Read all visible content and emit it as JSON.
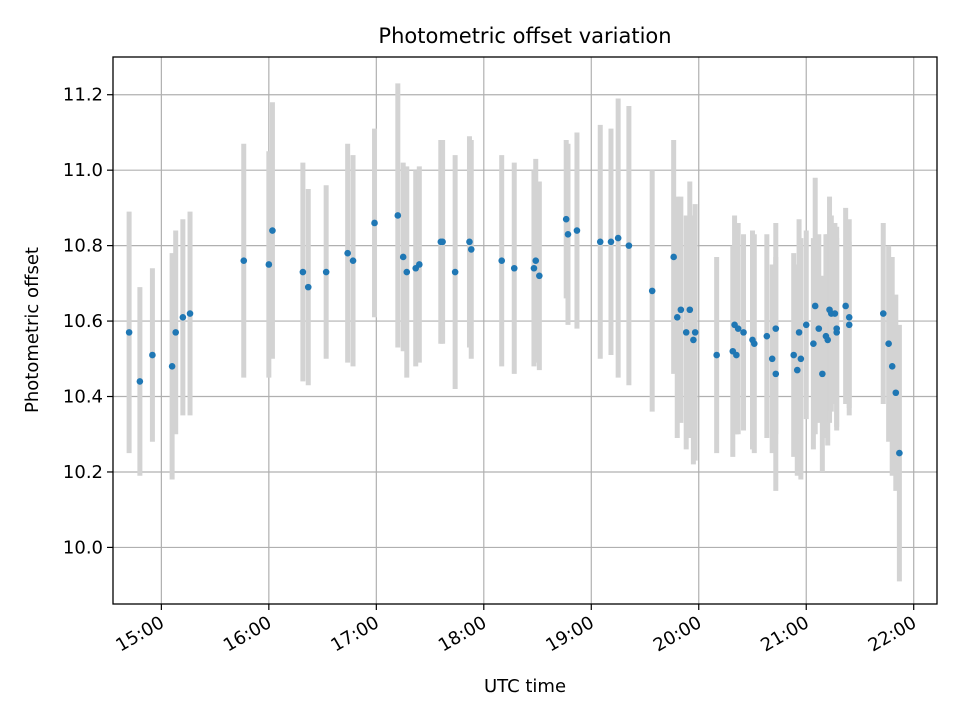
{
  "chart_data": {
    "type": "scatter",
    "title": "Photometric offset variation",
    "xlabel": "UTC time",
    "ylabel": "Photometric offset",
    "x_tick_labels": [
      "15:00",
      "16:00",
      "17:00",
      "18:00",
      "19:00",
      "20:00",
      "21:00",
      "22:00"
    ],
    "y_tick_labels": [
      "10.0",
      "10.2",
      "10.4",
      "10.6",
      "10.8",
      "11.0",
      "11.2"
    ],
    "xlim": [
      "14:33",
      "22:13"
    ],
    "ylim": [
      9.85,
      11.3
    ],
    "grid": true,
    "legend": null,
    "colors": {
      "points": "#1f77b4",
      "errorbars": "#d3d3d3",
      "grid": "#b0b0b0"
    },
    "series": [
      {
        "x": [
          "14:42",
          "14:48",
          "14:55",
          "15:06",
          "15:08",
          "15:12",
          "15:16",
          "15:46",
          "16:00",
          "16:02",
          "16:19",
          "16:22",
          "16:32",
          "16:44",
          "16:47",
          "16:59",
          "17:12",
          "17:15",
          "17:17",
          "17:22",
          "17:24",
          "17:36",
          "17:37",
          "17:44",
          "17:52",
          "17:53",
          "18:10",
          "18:17",
          "18:28",
          "18:29",
          "18:31",
          "18:46",
          "18:47",
          "18:52",
          "19:05",
          "19:11",
          "19:15",
          "19:21",
          "19:34",
          "19:46",
          "19:48",
          "19:50",
          "19:53",
          "19:55",
          "19:57",
          "19:58",
          "20:10",
          "20:19",
          "20:20",
          "20:21",
          "20:22",
          "20:25",
          "20:30",
          "20:31",
          "20:38",
          "20:41",
          "20:43",
          "20:43",
          "20:53",
          "20:55",
          "20:56",
          "20:57",
          "21:00",
          "21:04",
          "21:05",
          "21:07",
          "21:09",
          "21:11",
          "21:12",
          "21:13",
          "21:14",
          "21:16",
          "21:17",
          "21:17",
          "21:22",
          "21:24",
          "21:24",
          "21:43",
          "21:46",
          "21:48",
          "21:50",
          "21:52"
        ],
        "y": [
          10.57,
          10.44,
          10.51,
          10.48,
          10.57,
          10.61,
          10.62,
          10.76,
          10.75,
          10.84,
          10.73,
          10.69,
          10.73,
          10.78,
          10.76,
          10.86,
          10.88,
          10.77,
          10.73,
          10.74,
          10.75,
          10.81,
          10.81,
          10.73,
          10.81,
          10.79,
          10.76,
          10.74,
          10.74,
          10.76,
          10.72,
          10.87,
          10.83,
          10.84,
          10.81,
          10.81,
          10.82,
          10.8,
          10.68,
          10.77,
          10.61,
          10.63,
          10.57,
          10.63,
          10.55,
          10.57,
          10.51,
          10.52,
          10.59,
          10.51,
          10.58,
          10.57,
          10.55,
          10.54,
          10.56,
          10.5,
          10.58,
          10.46,
          10.51,
          10.47,
          10.57,
          10.5,
          10.59,
          10.54,
          10.64,
          10.58,
          10.46,
          10.56,
          10.55,
          10.63,
          10.62,
          10.62,
          10.57,
          10.58,
          10.64,
          10.61,
          10.59,
          10.62,
          10.54,
          10.48,
          10.41,
          10.25
        ],
        "yerr": [
          0.32,
          0.25,
          0.23,
          0.3,
          0.27,
          0.26,
          0.27,
          0.31,
          0.3,
          0.34,
          0.29,
          0.26,
          0.23,
          0.29,
          0.28,
          0.25,
          0.35,
          0.25,
          0.28,
          0.26,
          0.26,
          0.27,
          0.27,
          0.31,
          0.28,
          0.29,
          0.28,
          0.28,
          0.26,
          0.27,
          0.25,
          0.21,
          0.24,
          0.26,
          0.31,
          0.3,
          0.37,
          0.37,
          0.32,
          0.31,
          0.32,
          0.3,
          0.31,
          0.34,
          0.33,
          0.34,
          0.26,
          0.28,
          0.29,
          0.21,
          0.28,
          0.26,
          0.29,
          0.29,
          0.27,
          0.25,
          0.28,
          0.31,
          0.27,
          0.28,
          0.3,
          0.32,
          0.25,
          0.28,
          0.34,
          0.25,
          0.26,
          0.27,
          0.28,
          0.3,
          0.26,
          0.24,
          0.25,
          0.27,
          0.26,
          0.26,
          0.22,
          0.24,
          0.26,
          0.29,
          0.26,
          0.34
        ]
      }
    ]
  }
}
